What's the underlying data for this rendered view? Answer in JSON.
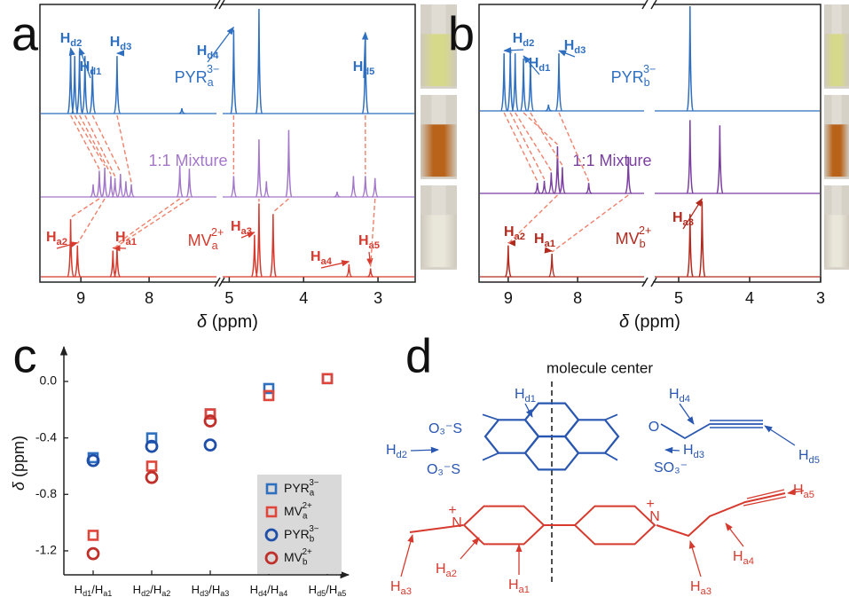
{
  "chart_data": [
    {
      "type": "nmr",
      "panel": "a",
      "xlabel": "δ (ppm)",
      "xsegments": [
        {
          "xlim": [
            9.6,
            7.0
          ],
          "xticks": [
            9,
            8
          ]
        },
        {
          "xlim": [
            5.1,
            2.5
          ],
          "xticks": [
            5,
            4,
            3
          ]
        }
      ],
      "series": [
        {
          "name": "PYRa3−",
          "color": "#2f6fbf",
          "x": [
            9.15,
            9.09,
            9.02,
            8.94,
            8.83,
            8.47,
            7.52,
            4.94,
            4.6,
            3.17
          ],
          "values": [
            0.6,
            0.55,
            0.6,
            0.55,
            0.45,
            0.55,
            0.05,
            0.8,
            1.0,
            0.75
          ],
          "annotations": [
            "Hd2",
            "Hd1",
            "Hd3",
            "Hd4",
            "Hd5"
          ]
        },
        {
          "name": "1:1 Mixture",
          "color": "#a377c9",
          "x": [
            8.82,
            8.73,
            8.65,
            8.56,
            8.5,
            8.42,
            8.34,
            8.26,
            7.55,
            7.41,
            4.94,
            4.6,
            4.5,
            4.2,
            3.55,
            3.33,
            3.17,
            3.04
          ],
          "values": [
            0.12,
            0.25,
            0.28,
            0.2,
            0.18,
            0.22,
            0.15,
            0.12,
            0.3,
            0.27,
            0.2,
            0.55,
            0.15,
            0.64,
            0.05,
            0.2,
            0.2,
            0.18
          ]
        },
        {
          "name": "MVa2+",
          "color": "#d63a2e",
          "x": [
            9.15,
            9.05,
            8.53,
            8.47,
            4.66,
            4.6,
            4.41,
            3.39,
            3.1
          ],
          "values": [
            0.55,
            0.3,
            0.25,
            0.3,
            0.4,
            0.7,
            0.6,
            0.12,
            0.08
          ],
          "annotations": [
            "Ha2",
            "Ha1",
            "Ha3",
            "Ha4",
            "Ha5"
          ]
        }
      ]
    },
    {
      "type": "nmr",
      "panel": "b",
      "xlabel": "δ (ppm)",
      "xsegments": [
        {
          "xlim": [
            9.42,
            7.03
          ],
          "xticks": [
            9,
            8
          ]
        },
        {
          "xlim": [
            5.35,
            3.0
          ],
          "xticks": [
            5,
            4,
            3
          ]
        }
      ],
      "series": [
        {
          "name": "PYRb3−",
          "color": "#2f6fbf",
          "x": [
            9.06,
            8.97,
            8.9,
            8.78,
            8.68,
            8.42,
            8.27,
            4.84
          ],
          "values": [
            0.55,
            0.6,
            0.55,
            0.5,
            0.5,
            0.06,
            0.55,
            1.0
          ],
          "annotations": [
            "Hd2",
            "Hd1",
            "Hd3"
          ]
        },
        {
          "name": "1:1 Mixture",
          "color": "#7b3fa0",
          "x": [
            8.58,
            8.48,
            8.38,
            8.29,
            8.22,
            7.84,
            7.27,
            4.84,
            4.42
          ],
          "values": [
            0.1,
            0.12,
            0.2,
            0.45,
            0.25,
            0.1,
            0.35,
            0.7,
            0.65
          ]
        },
        {
          "name": "MVb2+",
          "color": "#b22a1e",
          "x": [
            9.0,
            8.37,
            4.84,
            4.67
          ],
          "values": [
            0.3,
            0.22,
            0.6,
            0.72
          ],
          "annotations": [
            "Ha2",
            "Ha1",
            "Ha3"
          ]
        }
      ]
    },
    {
      "type": "scatter",
      "panel": "c",
      "ylabel": "δ (ppm)",
      "categories": [
        "Hd1/Ha1",
        "Hd2/Ha2",
        "Hd3/Ha3",
        "Hd4/Ha4",
        "Hd5/Ha5"
      ],
      "ylim": [
        -1.37,
        0.22
      ],
      "yticks": [
        {
          "value": 0,
          "label": "0.0"
        },
        -0.4,
        -0.8,
        -1.2
      ],
      "legend": "lower right",
      "series": [
        {
          "name": "PYRa3−",
          "color": "#2f6fbf",
          "marker": "square",
          "values": [
            -0.54,
            -0.4,
            -0.23,
            -0.05,
            0.02
          ]
        },
        {
          "name": "MVa2+",
          "color": "#e0453a",
          "marker": "square",
          "values": [
            -1.09,
            -0.6,
            -0.23,
            -0.1,
            0.02
          ]
        },
        {
          "name": "PYRb3−",
          "color": "#1f4fa8",
          "marker": "circle",
          "values": [
            -0.56,
            -0.46,
            -0.45,
            null,
            null
          ]
        },
        {
          "name": "MVb2+",
          "color": "#c0302a",
          "marker": "circle",
          "values": [
            -1.22,
            -0.68,
            -0.28,
            null,
            null
          ]
        }
      ]
    }
  ],
  "diagram": {
    "panel": "d",
    "title": "molecule center",
    "labels": [
      "Hd1",
      "Hd2",
      "Hd3",
      "Hd4",
      "Hd5",
      "O₃⁻S",
      "O₃⁻S",
      "SO₃⁻",
      "O",
      "Ha3",
      "Ha2",
      "Ha1",
      "Ha3",
      "Ha4",
      "Ha5",
      "N",
      "+",
      "N",
      "+"
    ]
  }
}
